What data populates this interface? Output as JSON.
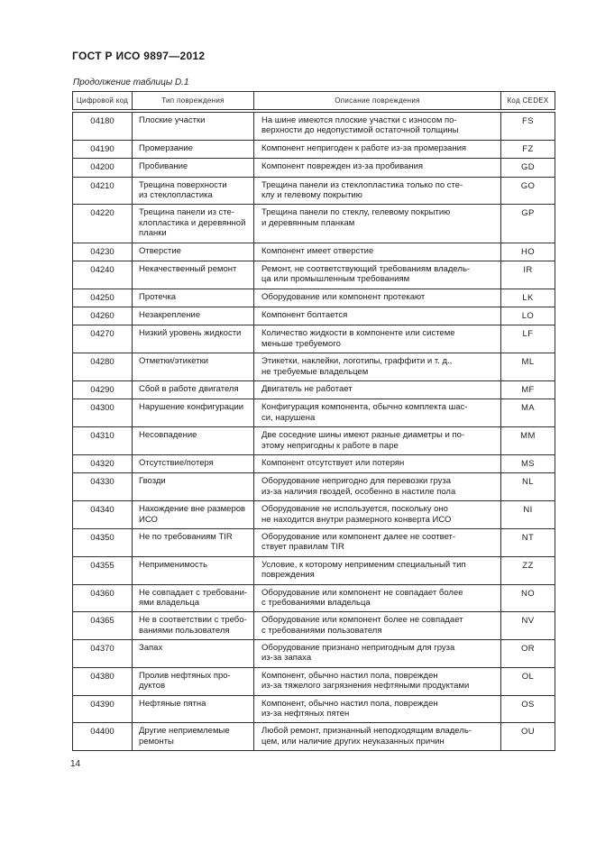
{
  "page": {
    "standard_title": "ГОСТ Р ИСО 9897—2012",
    "table_caption": "Продолжение таблицы D.1",
    "page_number": "14"
  },
  "table": {
    "columns": [
      "Цифровой код",
      "Тип повреждения",
      "Описание повреждения",
      "Код CEDEX"
    ],
    "rows": [
      {
        "code": "04180",
        "type": "Плоские участки",
        "description": "На шине имеются плоские участки с износом по-\nверхности до недопустимой остаточной толщины",
        "cedex": "FS"
      },
      {
        "code": "04190",
        "type": "Промерзание",
        "description": "Компонент непригоден к работе из-за промерзания",
        "cedex": "FZ"
      },
      {
        "code": "04200",
        "type": "Пробивание",
        "description": "Компонент поврежден из-за пробивания",
        "cedex": "GD"
      },
      {
        "code": "04210",
        "type": "Трещина поверхности\nиз стеклопластика",
        "description": "Трещина панели из стеклопластика только по сте-\nклу и гелевому покрытию",
        "cedex": "GO"
      },
      {
        "code": "04220",
        "type": "Трещина панели из сте-\nклопластика и деревянной\nпланки",
        "description": "Трещина панели по стеклу, гелевому покрытию\nи деревянным планкам",
        "cedex": "GP"
      },
      {
        "code": "04230",
        "type": "Отверстие",
        "description": "Компонент имеет отверстие",
        "cedex": "HO"
      },
      {
        "code": "04240",
        "type": "Некачественный ремонт",
        "description": "Ремонт, не соответствующий требованиям владель-\nца или промышленным требованиям",
        "cedex": "IR"
      },
      {
        "code": "04250",
        "type": "Протечка",
        "description": "Оборудование или компонент протекают",
        "cedex": "LK"
      },
      {
        "code": "04260",
        "type": "Незакрепление",
        "description": "Компонент болтается",
        "cedex": "LO"
      },
      {
        "code": "04270",
        "type": "Низкий уровень жидкости",
        "description": "Количество жидкости в компоненте или системе\nменьше требуемого",
        "cedex": "LF"
      },
      {
        "code": "04280",
        "type": "Отметки/этикетки",
        "description": "Этикетки, наклейки, логотипы, граффити и т. д.,\nне требуемые владельцем",
        "cedex": "ML"
      },
      {
        "code": "04290",
        "type": "Сбой в работе двигателя",
        "description": "Двигатель не работает",
        "cedex": "MF"
      },
      {
        "code": "04300",
        "type": "Нарушение конфигурации",
        "description": "Конфигурация компонента, обычно комплекта шас-\nси, нарушена",
        "cedex": "MA"
      },
      {
        "code": "04310",
        "type": "Несовпадение",
        "description": "Две соседние шины имеют разные диаметры и по-\nэтому непригодны к работе в паре",
        "cedex": "MM"
      },
      {
        "code": "04320",
        "type": "Отсутствие/потеря",
        "description": "Компонент отсутствует или потерян",
        "cedex": "MS"
      },
      {
        "code": "04330",
        "type": "Гвозди",
        "description": "Оборудование непригодно для перевозки груза\nиз-за наличия гвоздей, особенно в настиле пола",
        "cedex": "NL"
      },
      {
        "code": "04340",
        "type": "Нахождение вне размеров\nИСО",
        "description": "Оборудование не используется, поскольку оно\nне находится внутри размерного конверта ИСО",
        "cedex": "NI"
      },
      {
        "code": "04350",
        "type": "Не по требованиям TIR",
        "description": "Оборудование или компонент далее не соответ-\nствует правилам TIR",
        "cedex": "NT"
      },
      {
        "code": "04355",
        "type": "Неприменимость",
        "description": "Условие, к которому неприменим специальный тип\nповреждения",
        "cedex": "ZZ"
      },
      {
        "code": "04360",
        "type": "Не совпадает с требовани-\nями владельца",
        "description": "Оборудование или компонент не совпадает более\nс требованиями владельца",
        "cedex": "NO"
      },
      {
        "code": "04365",
        "type": "Не в соответствии с требо-\nваниями пользователя",
        "description": "Оборудование или компонент более не совпадает\nс требованиями пользователя",
        "cedex": "NV"
      },
      {
        "code": "04370",
        "type": "Запах",
        "description": "Оборудование признано непригодным для груза\nиз-за запаха",
        "cedex": "OR"
      },
      {
        "code": "04380",
        "type": "Пролив нефтяных про-\nдуктов",
        "description": "Компонент, обычно настил пола, поврежден\nиз-за тяжелого загрязнения нефтяными продуктами",
        "cedex": "OL"
      },
      {
        "code": "04390",
        "type": "Нефтяные пятна",
        "description": "Компонент, обычно настил пола, поврежден\nиз-за нефтяных пятен",
        "cedex": "OS"
      },
      {
        "code": "04400",
        "type": "Другие неприемлемые\nремонты",
        "description": "Любой ремонт, признанный неподходящим владель-\nцем, или наличие других неуказанных причин",
        "cedex": "OU"
      }
    ]
  }
}
